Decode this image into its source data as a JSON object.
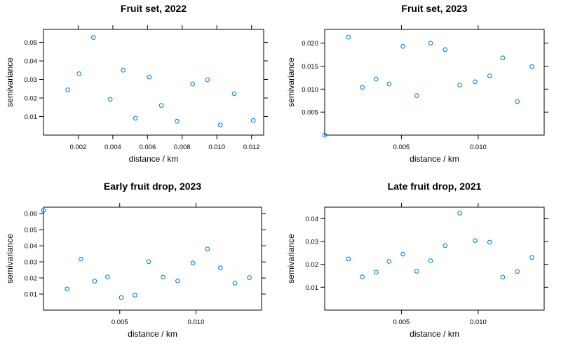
{
  "chart_data": [
    {
      "type": "scatter",
      "title": "Fruit set, 2022",
      "xlabel": "distance / km",
      "ylabel": "semivariance",
      "xlim": [
        0.0,
        0.0127
      ],
      "ylim": [
        0.0,
        0.057
      ],
      "xticks": [
        "0.002",
        "0.004",
        "0.006",
        "0.008",
        "0.010",
        "0.012"
      ],
      "yticks": [
        "0.01",
        "0.02",
        "0.03",
        "0.04",
        "0.05"
      ],
      "point_color": "#0080ff",
      "points": [
        {
          "x": 0.0014,
          "y": 0.0244
        },
        {
          "x": 0.00205,
          "y": 0.0331
        },
        {
          "x": 0.00288,
          "y": 0.0526
        },
        {
          "x": 0.00385,
          "y": 0.0193
        },
        {
          "x": 0.0046,
          "y": 0.035
        },
        {
          "x": 0.0053,
          "y": 0.0091
        },
        {
          "x": 0.0061,
          "y": 0.0313
        },
        {
          "x": 0.0068,
          "y": 0.016
        },
        {
          "x": 0.0077,
          "y": 0.0075
        },
        {
          "x": 0.0086,
          "y": 0.0275
        },
        {
          "x": 0.00945,
          "y": 0.0298
        },
        {
          "x": 0.0102,
          "y": 0.0055
        },
        {
          "x": 0.011,
          "y": 0.0223
        },
        {
          "x": 0.0121,
          "y": 0.0079
        }
      ]
    },
    {
      "type": "scatter",
      "title": "Fruit set, 2023",
      "xlabel": "distance / km",
      "ylabel": "semivariance",
      "xlim": [
        0.0,
        0.0143
      ],
      "ylim": [
        0.0,
        0.023
      ],
      "xticks": [
        "0.005",
        "0.010"
      ],
      "yticks": [
        "0.005",
        "0.010",
        "0.015",
        "0.020"
      ],
      "point_color": "#0080ff",
      "points": [
        {
          "x": 0.0,
          "y": 0.0
        },
        {
          "x": 0.00155,
          "y": 0.0213
        },
        {
          "x": 0.00245,
          "y": 0.0104
        },
        {
          "x": 0.00335,
          "y": 0.0122
        },
        {
          "x": 0.0042,
          "y": 0.0111
        },
        {
          "x": 0.0051,
          "y": 0.0193
        },
        {
          "x": 0.006,
          "y": 0.0086
        },
        {
          "x": 0.0069,
          "y": 0.02
        },
        {
          "x": 0.00785,
          "y": 0.0186
        },
        {
          "x": 0.0088,
          "y": 0.0109
        },
        {
          "x": 0.0098,
          "y": 0.0116
        },
        {
          "x": 0.01075,
          "y": 0.0129
        },
        {
          "x": 0.0116,
          "y": 0.0168
        },
        {
          "x": 0.01255,
          "y": 0.0073
        },
        {
          "x": 0.0135,
          "y": 0.0149
        }
      ]
    },
    {
      "type": "scatter",
      "title": "Early fruit drop, 2023",
      "xlabel": "distance / km",
      "ylabel": "semivariance",
      "xlim": [
        0.0,
        0.0143
      ],
      "ylim": [
        0.0,
        0.064
      ],
      "xticks": [
        "0.005",
        "0.010"
      ],
      "yticks": [
        "0.01",
        "0.02",
        "0.03",
        "0.04",
        "0.05",
        "0.06"
      ],
      "point_color": "#0080ff",
      "points": [
        {
          "x": 0.0,
          "y": 0.062
        },
        {
          "x": 0.00155,
          "y": 0.0131
        },
        {
          "x": 0.00245,
          "y": 0.0317
        },
        {
          "x": 0.00335,
          "y": 0.018
        },
        {
          "x": 0.0042,
          "y": 0.0206
        },
        {
          "x": 0.0051,
          "y": 0.0078
        },
        {
          "x": 0.006,
          "y": 0.0093
        },
        {
          "x": 0.0069,
          "y": 0.0301
        },
        {
          "x": 0.00785,
          "y": 0.0205
        },
        {
          "x": 0.0088,
          "y": 0.0181
        },
        {
          "x": 0.0098,
          "y": 0.0293
        },
        {
          "x": 0.01075,
          "y": 0.038
        },
        {
          "x": 0.0116,
          "y": 0.0263
        },
        {
          "x": 0.01255,
          "y": 0.0168
        },
        {
          "x": 0.0135,
          "y": 0.0202
        }
      ]
    },
    {
      "type": "scatter",
      "title": "Late fruit drop, 2021",
      "xlabel": "distance / km",
      "ylabel": "semivariance",
      "xlim": [
        0.0,
        0.0143
      ],
      "ylim": [
        0.0,
        0.045
      ],
      "xticks": [
        "0.005",
        "0.010"
      ],
      "yticks": [
        "0.01",
        "0.02",
        "0.03",
        "0.04"
      ],
      "point_color": "#0080ff",
      "points": [
        {
          "x": 0.00155,
          "y": 0.0224
        },
        {
          "x": 0.00245,
          "y": 0.0145
        },
        {
          "x": 0.00335,
          "y": 0.0166
        },
        {
          "x": 0.0042,
          "y": 0.0213
        },
        {
          "x": 0.0051,
          "y": 0.0245
        },
        {
          "x": 0.006,
          "y": 0.017
        },
        {
          "x": 0.0069,
          "y": 0.0216
        },
        {
          "x": 0.00785,
          "y": 0.0282
        },
        {
          "x": 0.0088,
          "y": 0.0424
        },
        {
          "x": 0.0098,
          "y": 0.0304
        },
        {
          "x": 0.01075,
          "y": 0.0297
        },
        {
          "x": 0.0116,
          "y": 0.0144
        },
        {
          "x": 0.01255,
          "y": 0.0169
        },
        {
          "x": 0.0135,
          "y": 0.023
        }
      ]
    }
  ]
}
